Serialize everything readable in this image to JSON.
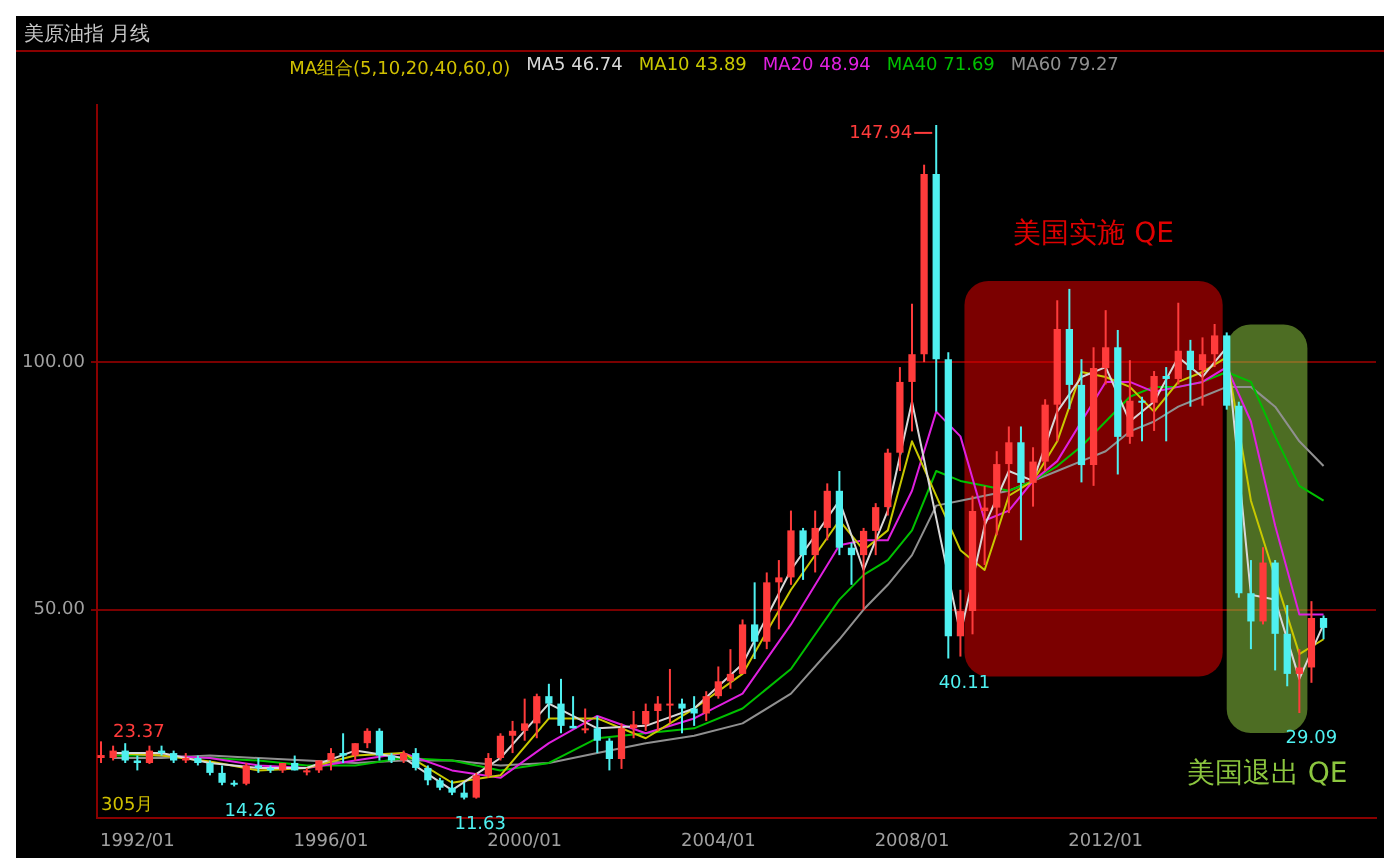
{
  "chart_data": {
    "type": "candlestick",
    "title": "美原油指 月线",
    "legend_title": "MA组合(5,10,20,40,60,0)",
    "legend": "top",
    "grid": "y",
    "marker": "none",
    "line_style": "solid",
    "xlim": [
      "1991-03",
      "2017-08"
    ],
    "ylim": [
      7.8,
      152
    ],
    "xticks": [
      {
        "value": "1992-01",
        "label": "1992/01"
      },
      {
        "value": "1996-01",
        "label": "1996/01"
      },
      {
        "value": "2000-01",
        "label": "2000/01"
      },
      {
        "value": "2004-01",
        "label": "2004/01"
      },
      {
        "value": "2008-01",
        "label": "2008/01"
      },
      {
        "value": "2012-01",
        "label": "2012/01"
      }
    ],
    "yticks": [
      {
        "value": 50,
        "label": "50.00"
      },
      {
        "value": 100,
        "label": "100.00"
      }
    ],
    "x": [
      "1991-04",
      "1991-07",
      "1991-10",
      "1992-01",
      "1992-04",
      "1992-07",
      "1992-10",
      "1993-01",
      "1993-04",
      "1993-07",
      "1993-10",
      "1994-01",
      "1994-04",
      "1994-07",
      "1994-10",
      "1995-01",
      "1995-04",
      "1995-07",
      "1995-10",
      "1996-01",
      "1996-04",
      "1996-07",
      "1996-10",
      "1997-01",
      "1997-04",
      "1997-07",
      "1997-10",
      "1998-01",
      "1998-04",
      "1998-07",
      "1998-10",
      "1999-01",
      "1999-04",
      "1999-07",
      "1999-10",
      "2000-01",
      "2000-04",
      "2000-07",
      "2000-10",
      "2001-01",
      "2001-04",
      "2001-07",
      "2001-10",
      "2002-01",
      "2002-04",
      "2002-07",
      "2002-10",
      "2003-01",
      "2003-04",
      "2003-07",
      "2003-10",
      "2004-01",
      "2004-04",
      "2004-07",
      "2004-10",
      "2005-01",
      "2005-04",
      "2005-07",
      "2005-10",
      "2006-01",
      "2006-04",
      "2006-07",
      "2006-10",
      "2007-01",
      "2007-04",
      "2007-07",
      "2007-10",
      "2008-01",
      "2008-04",
      "2008-07",
      "2008-10",
      "2009-01",
      "2009-04",
      "2009-07",
      "2009-10",
      "2010-01",
      "2010-04",
      "2010-07",
      "2010-10",
      "2011-01",
      "2011-04",
      "2011-07",
      "2011-10",
      "2012-01",
      "2012-04",
      "2012-07",
      "2012-10",
      "2013-01",
      "2013-04",
      "2013-07",
      "2013-10",
      "2014-01",
      "2014-04",
      "2014-07",
      "2014-10",
      "2015-01",
      "2015-04",
      "2015-07",
      "2015-10",
      "2016-01",
      "2016-04",
      "2016-07"
    ],
    "ohlc": [
      [
        20,
        23.37,
        19,
        20.6
      ],
      [
        20,
        22.5,
        19.5,
        21.5
      ],
      [
        21.5,
        23,
        19,
        19.5
      ],
      [
        19.5,
        20.5,
        17.5,
        19
      ],
      [
        19,
        22.5,
        18.8,
        21.5
      ],
      [
        21.5,
        22.5,
        20.5,
        21
      ],
      [
        21,
        21.5,
        19,
        19.5
      ],
      [
        19.5,
        21,
        19,
        20
      ],
      [
        20,
        20.5,
        18.5,
        19
      ],
      [
        19,
        19.5,
        16.5,
        17
      ],
      [
        17,
        18.5,
        14.5,
        15
      ],
      [
        15,
        15.5,
        14.26,
        14.8
      ],
      [
        14.8,
        19,
        14.5,
        18.5
      ],
      [
        18.5,
        20,
        17,
        18
      ],
      [
        18,
        18.5,
        17,
        17.5
      ],
      [
        17.5,
        19,
        17,
        19
      ],
      [
        19,
        20.5,
        17.5,
        17.5
      ],
      [
        17.5,
        18,
        16.5,
        17.5
      ],
      [
        17.5,
        19.5,
        17,
        19.5
      ],
      [
        19.5,
        22,
        17.5,
        21
      ],
      [
        21,
        25,
        19,
        20.5
      ],
      [
        20.5,
        23,
        19.5,
        23
      ],
      [
        23,
        26,
        22,
        25.5
      ],
      [
        25.5,
        26,
        19.5,
        20.5
      ],
      [
        20.5,
        21,
        19,
        19.5
      ],
      [
        19.5,
        21.5,
        19,
        21
      ],
      [
        21,
        22,
        17.5,
        18
      ],
      [
        18,
        18.5,
        14.5,
        15.5
      ],
      [
        15.5,
        16,
        13.5,
        14
      ],
      [
        14,
        15.5,
        12.5,
        13
      ],
      [
        13,
        15,
        11.63,
        12
      ],
      [
        12,
        17,
        11.8,
        16.5
      ],
      [
        16.5,
        21,
        16,
        20
      ],
      [
        20,
        25,
        19.5,
        24.5
      ],
      [
        24.5,
        27.5,
        21,
        25.5
      ],
      [
        25.5,
        32,
        23.5,
        27
      ],
      [
        27,
        33,
        24,
        32.5
      ],
      [
        32.5,
        35,
        28,
        31
      ],
      [
        31,
        36,
        25,
        26.5
      ],
      [
        26.5,
        32.5,
        26,
        26
      ],
      [
        26,
        30,
        25,
        26
      ],
      [
        26,
        28.5,
        21,
        23.5
      ],
      [
        23.5,
        24,
        17.5,
        19.8
      ],
      [
        19.8,
        27,
        17.8,
        26
      ],
      [
        26,
        29.5,
        24,
        26.8
      ],
      [
        26.8,
        31,
        25.5,
        29.5
      ],
      [
        29.5,
        32.5,
        25.5,
        31
      ],
      [
        31,
        38,
        27,
        31
      ],
      [
        31,
        32,
        25,
        30
      ],
      [
        30,
        32.5,
        26.5,
        29
      ],
      [
        29,
        33.5,
        27.5,
        32.5
      ],
      [
        32.5,
        38.5,
        32,
        35.5
      ],
      [
        35.5,
        42,
        34,
        37
      ],
      [
        37,
        48,
        37,
        47
      ],
      [
        47,
        55.5,
        40,
        43.5
      ],
      [
        43.5,
        57.5,
        42,
        55.5
      ],
      [
        55.5,
        60,
        46,
        56.5
      ],
      [
        56.5,
        70,
        55,
        66
      ],
      [
        66,
        66.5,
        56,
        61
      ],
      [
        61,
        70,
        57.5,
        66.5
      ],
      [
        66.5,
        75.5,
        64,
        74
      ],
      [
        74,
        78,
        61,
        62.5
      ],
      [
        62.5,
        63.5,
        55,
        61
      ],
      [
        61,
        66.5,
        50,
        65.9
      ],
      [
        65.9,
        71.5,
        61,
        70.7
      ],
      [
        70.7,
        82.5,
        69,
        81.7
      ],
      [
        81.7,
        99,
        78,
        96
      ],
      [
        96,
        111.8,
        86,
        101.6
      ],
      [
        101.6,
        139.9,
        100,
        138
      ],
      [
        138,
        147.94,
        90,
        100.6
      ],
      [
        100.6,
        102,
        40.11,
        44.6
      ],
      [
        44.6,
        54,
        40.5,
        49.7
      ],
      [
        49.7,
        73,
        45,
        69.9
      ],
      [
        69.9,
        75,
        59,
        70.6
      ],
      [
        70.6,
        82,
        65,
        79.4
      ],
      [
        79.4,
        87,
        69.5,
        83.8
      ],
      [
        83.8,
        87,
        64,
        75.6
      ],
      [
        75.6,
        82.8,
        70.8,
        79.9
      ],
      [
        79.9,
        92.5,
        78,
        91.4
      ],
      [
        91.4,
        112.5,
        84,
        106.7
      ],
      [
        106.7,
        114.8,
        90.5,
        95.4
      ],
      [
        95.4,
        100.6,
        75.7,
        79.2
      ],
      [
        79.2,
        103,
        75,
        98.8
      ],
      [
        98.8,
        110.5,
        95.5,
        103
      ],
      [
        103,
        106.5,
        77.3,
        84.9
      ],
      [
        84.9,
        100.4,
        83.5,
        92.2
      ],
      [
        92.2,
        93,
        84,
        91.8
      ],
      [
        91.8,
        98.2,
        86.1,
        97.2
      ],
      [
        97.2,
        99,
        84,
        96.6
      ],
      [
        96.6,
        112,
        95.5,
        102.3
      ],
      [
        102.3,
        104.5,
        91,
        98.4
      ],
      [
        98.4,
        105,
        91.2,
        101.6
      ],
      [
        101.6,
        107.7,
        99,
        105.4
      ],
      [
        105.4,
        106,
        90.4,
        91.2
      ],
      [
        91.2,
        92,
        52.4,
        53.3
      ],
      [
        53.3,
        60,
        42,
        47.6
      ],
      [
        47.6,
        62.6,
        47,
        59.5
      ],
      [
        59.5,
        60,
        37.7,
        45.1
      ],
      [
        45.1,
        50.9,
        34.5,
        37
      ],
      [
        37,
        42,
        29.09,
        38.3
      ],
      [
        38.3,
        51.7,
        35.2,
        48.3
      ],
      [
        48.3,
        48.8,
        44,
        46.3
      ]
    ],
    "series": [
      {
        "name": "MA5 46.74",
        "type": "line",
        "color": "#d8d8d8",
        "x": [
          "1991-07",
          "1992-07",
          "1993-07",
          "1994-07",
          "1995-07",
          "1996-07",
          "1997-07",
          "1998-07",
          "1999-07",
          "2000-07",
          "2001-07",
          "2002-07",
          "2003-07",
          "2004-07",
          "2005-07",
          "2006-07",
          "2007-01",
          "2007-07",
          "2008-01",
          "2008-07",
          "2009-01",
          "2009-07",
          "2010-01",
          "2010-07",
          "2011-01",
          "2011-07",
          "2012-01",
          "2012-07",
          "2013-01",
          "2013-07",
          "2014-01",
          "2014-07",
          "2015-01",
          "2015-07",
          "2016-01",
          "2016-07"
        ],
        "values": [
          21,
          21,
          19,
          18,
          18,
          21.5,
          20,
          13.5,
          20,
          31,
          26,
          26.5,
          30,
          39,
          58,
          72,
          58,
          70,
          92,
          null,
          45,
          67,
          78,
          76,
          90,
          97,
          99,
          88,
          92,
          101,
          97,
          103,
          53,
          52,
          36,
          47
        ]
      },
      {
        "name": "MA10 43.89",
        "type": "line",
        "color": "#c8c800",
        "x": [
          "1991-07",
          "1992-07",
          "1993-07",
          "1994-07",
          "1995-07",
          "1996-07",
          "1997-07",
          "1998-07",
          "1999-07",
          "2000-07",
          "2001-07",
          "2002-07",
          "2003-07",
          "2004-07",
          "2005-07",
          "2006-07",
          "2007-01",
          "2007-07",
          "2008-01",
          "2008-07",
          "2009-01",
          "2009-07",
          "2010-01",
          "2010-07",
          "2011-01",
          "2011-07",
          "2012-01",
          "2012-07",
          "2013-01",
          "2013-07",
          "2014-01",
          "2014-07",
          "2015-01",
          "2015-07",
          "2016-01",
          "2016-07"
        ],
        "values": [
          21,
          20.5,
          19.3,
          17.5,
          18,
          20.5,
          21,
          15,
          16.5,
          28,
          28,
          24,
          30,
          37,
          54,
          68,
          62,
          66,
          84,
          null,
          62,
          58,
          73,
          76,
          84,
          98,
          97,
          95,
          90,
          96,
          98,
          101,
          72,
          null,
          41,
          44
        ]
      },
      {
        "name": "MA20 48.94",
        "type": "line",
        "color": "#e020e0",
        "x": [
          "1991-07",
          "1992-07",
          "1993-07",
          "1994-07",
          "1995-07",
          "1996-07",
          "1997-07",
          "1998-07",
          "1999-07",
          "2000-07",
          "2001-07",
          "2002-07",
          "2003-07",
          "2004-07",
          "2005-07",
          "2006-07",
          "2007-01",
          "2007-07",
          "2008-01",
          "2008-07",
          "2009-01",
          "2009-07",
          "2010-01",
          "2010-07",
          "2011-01",
          "2011-07",
          "2012-01",
          "2012-07",
          "2013-01",
          "2013-07",
          "2014-01",
          "2014-07",
          "2015-01",
          "2015-07",
          "2016-01",
          "2016-07"
        ],
        "values": [
          21,
          20.5,
          20,
          18.5,
          18,
          19.5,
          21,
          17.5,
          16,
          23,
          28.5,
          25,
          28,
          33,
          47,
          63,
          64,
          64,
          74,
          90,
          85,
          68,
          70,
          76,
          80,
          88,
          96,
          96,
          94,
          95,
          96,
          99,
          88,
          67,
          49,
          49
        ]
      },
      {
        "name": "MA40 71.69",
        "type": "line",
        "color": "#00c000",
        "x": [
          "1991-07",
          "1992-07",
          "1993-07",
          "1994-07",
          "1995-07",
          "1996-07",
          "1997-07",
          "1998-07",
          "1999-07",
          "2000-07",
          "2001-07",
          "2002-07",
          "2003-07",
          "2004-07",
          "2005-07",
          "2006-07",
          "2007-01",
          "2007-07",
          "2008-01",
          "2008-07",
          "2009-01",
          "2009-07",
          "2010-01",
          "2010-07",
          "2011-01",
          "2011-07",
          "2012-01",
          "2012-07",
          "2013-01",
          "2013-07",
          "2014-01",
          "2014-07",
          "2015-01",
          "2015-07",
          "2016-01",
          "2016-07"
        ],
        "values": [
          20.5,
          20.5,
          20,
          19.5,
          18.5,
          18.5,
          20,
          19.5,
          17.5,
          19,
          24,
          25,
          26,
          30,
          38,
          52,
          57,
          60,
          66,
          78,
          76,
          75,
          74,
          76,
          79,
          83,
          88,
          93,
          95,
          95,
          96,
          98,
          96,
          85,
          75,
          72
        ]
      },
      {
        "name": "MA60 79.27",
        "type": "line",
        "color": "#909090",
        "x": [
          "1991-07",
          "1992-07",
          "1993-07",
          "1994-07",
          "1995-07",
          "1996-07",
          "1997-07",
          "1998-07",
          "1999-07",
          "2000-07",
          "2001-07",
          "2002-07",
          "2003-07",
          "2004-07",
          "2005-07",
          "2006-07",
          "2007-01",
          "2007-07",
          "2008-01",
          "2008-07",
          "2009-01",
          "2009-07",
          "2010-01",
          "2010-07",
          "2011-01",
          "2011-07",
          "2012-01",
          "2012-07",
          "2013-01",
          "2013-07",
          "2014-01",
          "2014-07",
          "2015-01",
          "2015-07",
          "2016-01",
          "2016-07"
        ],
        "values": [
          20,
          20,
          20.5,
          20,
          19.5,
          19,
          19.5,
          19.5,
          18.5,
          19,
          21,
          23,
          24.5,
          27,
          33,
          44,
          50,
          55,
          61,
          71,
          72,
          73,
          74,
          76,
          78,
          80,
          82,
          86,
          88,
          91,
          93,
          95,
          95,
          91,
          84,
          79
        ]
      }
    ],
    "bands": [
      {
        "axis": "x",
        "from": "2009-02",
        "to": "2014-06",
        "label": "美国实施 QE",
        "color": "#e00000"
      },
      {
        "axis": "x",
        "from": "2014-07",
        "to": "2016-03",
        "label": "美国退出 QE",
        "color": "#8cc63f"
      }
    ],
    "annotations": [
      {
        "text": "147.94",
        "x": "2008-07",
        "y": 147.94
      },
      {
        "text": "40.11",
        "x": "2008-12",
        "y": 40.11
      },
      {
        "text": "23.37",
        "x": "1991-05",
        "y": 23.37
      },
      {
        "text": "14.26",
        "x": "1994-03",
        "y": 14.26
      },
      {
        "text": "11.63",
        "x": "1998-12",
        "y": 11.63
      },
      {
        "text": "29.09",
        "x": "2016-02",
        "y": 29.09
      },
      "305月"
    ]
  }
}
